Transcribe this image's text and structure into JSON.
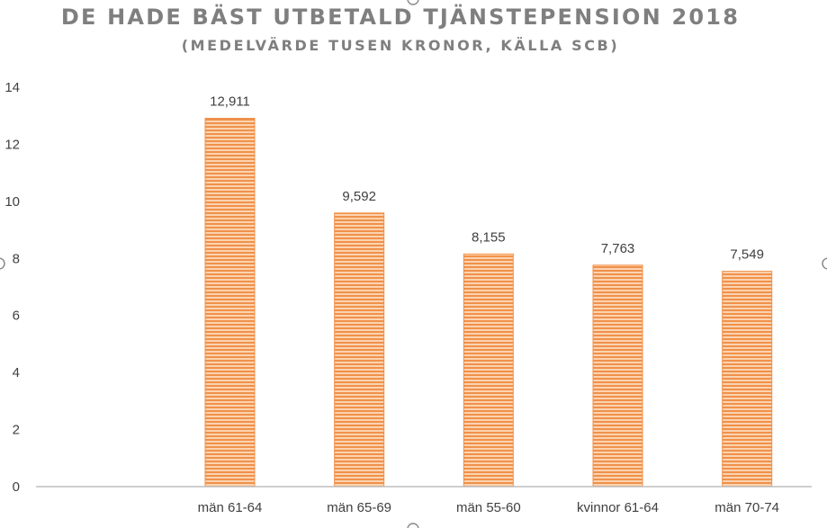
{
  "chart_data": {
    "type": "bar",
    "title": "DE HADE BÄST UTBETALD TJÄNSTEPENSION 2018",
    "subtitle": "(MEDELVÄRDE TUSEN KRONOR, KÄLLA SCB)",
    "categories": [
      "",
      "män 61-64",
      "män 65-69",
      "män 55-60",
      "kvinnor 61-64",
      "män 70-74"
    ],
    "values": [
      null,
      12.911,
      9.592,
      8.155,
      7.763,
      7.549
    ],
    "data_labels": [
      "",
      "12,911",
      "9,592",
      "8,155",
      "7,763",
      "7,549"
    ],
    "ylim": [
      0,
      14
    ],
    "yticks": [
      "0",
      "2",
      "4",
      "6",
      "8",
      "10",
      "12",
      "14"
    ],
    "xlabel": "",
    "ylabel": "",
    "grid": false,
    "legend": "none",
    "bar_color": "#f4a460",
    "bar_stripe_color": "#ed7d31"
  }
}
